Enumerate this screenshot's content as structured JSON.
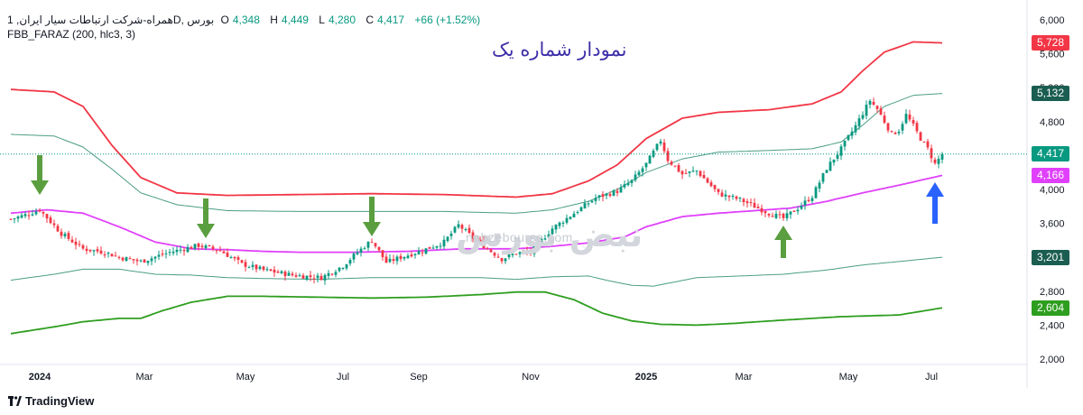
{
  "header": {
    "symbol": "همراه-شرکت ارتباطات سیار ایران, 1D, بورس",
    "open_label": "O",
    "open": "4,348",
    "high_label": "H",
    "high": "4,449",
    "low_label": "L",
    "low": "4,280",
    "close_label": "C",
    "close": "4,417",
    "change": "+66 (+1.52%)",
    "indicator": "FBB_FARAZ (200, hlc3, 3)"
  },
  "annotation": {
    "title": "نمودار شماره یک"
  },
  "watermark": {
    "brand": "نبض بورس",
    "site": "nabzebourse.com"
  },
  "branding": {
    "text": "TradingView"
  },
  "colors": {
    "up": "#089981",
    "down": "#f23645",
    "upper_band": "#f23645",
    "lower_band": "#2e9e1f",
    "mid_band": "#e040fb",
    "inner_band": "#4a9d86",
    "arrow_green": "#5a9e3f",
    "arrow_blue": "#2962ff"
  },
  "price_labels": [
    {
      "text": "5,728",
      "value": 5728,
      "color": "#f23645"
    },
    {
      "text": "5,132",
      "value": 5132,
      "color": "#1b5e51"
    },
    {
      "text": "4,417",
      "value": 4417,
      "color": "#089981"
    },
    {
      "text": "4,166",
      "value": 4166,
      "color": "#e040fb"
    },
    {
      "text": "3,201",
      "value": 3201,
      "color": "#1b5e51"
    },
    {
      "text": "2,604",
      "value": 2604,
      "color": "#2e9e1f"
    }
  ],
  "arrows": [
    {
      "color": "green",
      "direction": "down",
      "date_index": 8
    },
    {
      "color": "green",
      "direction": "down",
      "date_index": 54
    },
    {
      "color": "green",
      "direction": "down",
      "date_index": 100
    },
    {
      "color": "green",
      "direction": "up",
      "date_index": 214
    },
    {
      "color": "blue",
      "direction": "up",
      "date_index": 256
    }
  ],
  "chart_data": {
    "type": "candlestick",
    "title": "",
    "y_axis": {
      "ticks": [
        2000,
        2400,
        2800,
        3200,
        3600,
        4000,
        4400,
        4800,
        5200,
        5600,
        6000
      ],
      "tick_labels": [
        "2,000",
        "2,400",
        "2,800",
        "3,200",
        "3,600",
        "4,000",
        "4,400",
        "4,800",
        "5,200",
        "5,600",
        "6,000"
      ],
      "range": [
        1950,
        6080
      ]
    },
    "x_axis": {
      "labels": [
        {
          "text": "2024",
          "date_index": 8,
          "bold": true
        },
        {
          "text": "Mar",
          "date_index": 37
        },
        {
          "text": "May",
          "date_index": 65
        },
        {
          "text": "Jul",
          "date_index": 92
        },
        {
          "text": "Sep",
          "date_index": 113
        },
        {
          "text": "Nov",
          "date_index": 144
        },
        {
          "text": "2025",
          "date_index": 176,
          "bold": true
        },
        {
          "text": "Mar",
          "date_index": 203
        },
        {
          "text": "May",
          "date_index": 232
        },
        {
          "text": "Jul",
          "date_index": 255
        }
      ]
    },
    "last_close": 4417,
    "close_anchors": [
      [
        0,
        3650
      ],
      [
        4,
        3700
      ],
      [
        8,
        3760
      ],
      [
        11,
        3620
      ],
      [
        14,
        3480
      ],
      [
        20,
        3300
      ],
      [
        26,
        3260
      ],
      [
        30,
        3200
      ],
      [
        36,
        3150
      ],
      [
        44,
        3260
      ],
      [
        52,
        3340
      ],
      [
        58,
        3280
      ],
      [
        64,
        3120
      ],
      [
        70,
        3050
      ],
      [
        78,
        2990
      ],
      [
        86,
        2960
      ],
      [
        92,
        3100
      ],
      [
        96,
        3260
      ],
      [
        100,
        3400
      ],
      [
        104,
        3140
      ],
      [
        108,
        3200
      ],
      [
        114,
        3280
      ],
      [
        120,
        3380
      ],
      [
        124,
        3580
      ],
      [
        128,
        3430
      ],
      [
        132,
        3300
      ],
      [
        136,
        3180
      ],
      [
        140,
        3250
      ],
      [
        144,
        3260
      ],
      [
        150,
        3540
      ],
      [
        156,
        3720
      ],
      [
        162,
        3900
      ],
      [
        168,
        3980
      ],
      [
        172,
        4100
      ],
      [
        176,
        4300
      ],
      [
        180,
        4580
      ],
      [
        182,
        4350
      ],
      [
        186,
        4180
      ],
      [
        190,
        4220
      ],
      [
        196,
        3950
      ],
      [
        202,
        3880
      ],
      [
        206,
        3800
      ],
      [
        210,
        3720
      ],
      [
        214,
        3660
      ],
      [
        218,
        3780
      ],
      [
        222,
        3920
      ],
      [
        226,
        4250
      ],
      [
        230,
        4480
      ],
      [
        234,
        4750
      ],
      [
        238,
        5050
      ],
      [
        240,
        4950
      ],
      [
        242,
        4800
      ],
      [
        244,
        4650
      ],
      [
        246,
        4700
      ],
      [
        248,
        4880
      ],
      [
        250,
        4750
      ],
      [
        252,
        4600
      ],
      [
        254,
        4480
      ],
      [
        256,
        4300
      ],
      [
        258,
        4417
      ]
    ],
    "series": [
      {
        "name": "upper band",
        "color": "#f23645",
        "points": [
          [
            0,
            5180
          ],
          [
            12,
            5150
          ],
          [
            20,
            4980
          ],
          [
            28,
            4520
          ],
          [
            36,
            4140
          ],
          [
            46,
            3960
          ],
          [
            60,
            3930
          ],
          [
            80,
            3940
          ],
          [
            100,
            3950
          ],
          [
            120,
            3940
          ],
          [
            140,
            3910
          ],
          [
            150,
            3950
          ],
          [
            160,
            4100
          ],
          [
            168,
            4290
          ],
          [
            176,
            4600
          ],
          [
            186,
            4840
          ],
          [
            196,
            4910
          ],
          [
            210,
            4940
          ],
          [
            222,
            5010
          ],
          [
            230,
            5150
          ],
          [
            236,
            5400
          ],
          [
            242,
            5620
          ],
          [
            250,
            5740
          ],
          [
            258,
            5728
          ]
        ]
      },
      {
        "name": "inner upper band",
        "color": "#4a9d86",
        "points": [
          [
            0,
            4650
          ],
          [
            12,
            4630
          ],
          [
            20,
            4500
          ],
          [
            28,
            4240
          ],
          [
            36,
            3960
          ],
          [
            46,
            3820
          ],
          [
            60,
            3750
          ],
          [
            80,
            3740
          ],
          [
            100,
            3740
          ],
          [
            120,
            3740
          ],
          [
            140,
            3720
          ],
          [
            150,
            3760
          ],
          [
            160,
            3860
          ],
          [
            168,
            4000
          ],
          [
            176,
            4200
          ],
          [
            186,
            4360
          ],
          [
            196,
            4440
          ],
          [
            210,
            4460
          ],
          [
            222,
            4480
          ],
          [
            230,
            4560
          ],
          [
            236,
            4760
          ],
          [
            242,
            4980
          ],
          [
            250,
            5110
          ],
          [
            258,
            5132
          ]
        ]
      },
      {
        "name": "middle band",
        "color": "#e040fb",
        "points": [
          [
            0,
            3720
          ],
          [
            10,
            3760
          ],
          [
            20,
            3720
          ],
          [
            30,
            3560
          ],
          [
            40,
            3380
          ],
          [
            50,
            3300
          ],
          [
            60,
            3290
          ],
          [
            70,
            3270
          ],
          [
            80,
            3260
          ],
          [
            95,
            3260
          ],
          [
            110,
            3270
          ],
          [
            125,
            3300
          ],
          [
            140,
            3300
          ],
          [
            150,
            3330
          ],
          [
            160,
            3370
          ],
          [
            170,
            3440
          ],
          [
            176,
            3560
          ],
          [
            186,
            3680
          ],
          [
            196,
            3720
          ],
          [
            206,
            3750
          ],
          [
            216,
            3780
          ],
          [
            226,
            3860
          ],
          [
            236,
            3960
          ],
          [
            246,
            4050
          ],
          [
            258,
            4166
          ]
        ]
      },
      {
        "name": "inner lower band",
        "color": "#4a9d86",
        "points": [
          [
            0,
            2930
          ],
          [
            12,
            3000
          ],
          [
            20,
            3060
          ],
          [
            30,
            3060
          ],
          [
            40,
            3000
          ],
          [
            50,
            2990
          ],
          [
            60,
            2960
          ],
          [
            70,
            2950
          ],
          [
            85,
            2940
          ],
          [
            100,
            2960
          ],
          [
            115,
            2960
          ],
          [
            130,
            2960
          ],
          [
            140,
            2940
          ],
          [
            150,
            2970
          ],
          [
            160,
            2980
          ],
          [
            166,
            2920
          ],
          [
            172,
            2870
          ],
          [
            178,
            2860
          ],
          [
            190,
            2960
          ],
          [
            202,
            2980
          ],
          [
            214,
            3000
          ],
          [
            226,
            3050
          ],
          [
            236,
            3110
          ],
          [
            246,
            3150
          ],
          [
            258,
            3201
          ]
        ]
      },
      {
        "name": "lower band",
        "color": "#2e9e1f",
        "points": [
          [
            0,
            2300
          ],
          [
            12,
            2380
          ],
          [
            20,
            2440
          ],
          [
            30,
            2480
          ],
          [
            36,
            2480
          ],
          [
            42,
            2570
          ],
          [
            50,
            2670
          ],
          [
            60,
            2740
          ],
          [
            70,
            2740
          ],
          [
            85,
            2730
          ],
          [
            100,
            2720
          ],
          [
            115,
            2730
          ],
          [
            130,
            2760
          ],
          [
            140,
            2790
          ],
          [
            148,
            2790
          ],
          [
            156,
            2700
          ],
          [
            164,
            2540
          ],
          [
            172,
            2450
          ],
          [
            180,
            2410
          ],
          [
            190,
            2400
          ],
          [
            200,
            2420
          ],
          [
            214,
            2460
          ],
          [
            230,
            2500
          ],
          [
            246,
            2520
          ],
          [
            258,
            2604
          ]
        ]
      }
    ]
  }
}
